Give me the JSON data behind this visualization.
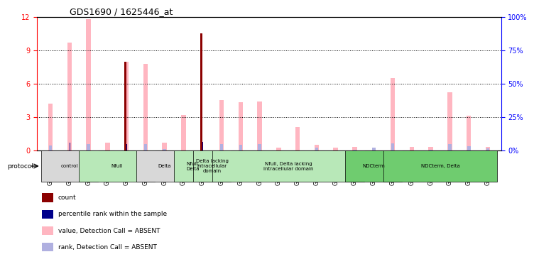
{
  "title": "GDS1690 / 1625446_at",
  "samples": [
    "GSM53393",
    "GSM53396",
    "GSM53403",
    "GSM53397",
    "GSM53399",
    "GSM53408",
    "GSM53390",
    "GSM53401",
    "GSM53406",
    "GSM53402",
    "GSM53388",
    "GSM53398",
    "GSM53392",
    "GSM53400",
    "GSM53405",
    "GSM53409",
    "GSM53410",
    "GSM53411",
    "GSM53395",
    "GSM53404",
    "GSM53389",
    "GSM53391",
    "GSM53394",
    "GSM53407"
  ],
  "count": [
    0,
    0,
    0,
    0,
    8.0,
    0,
    0,
    0,
    10.5,
    0,
    0,
    0,
    0,
    0,
    0,
    0,
    0,
    0,
    0,
    0,
    0,
    0,
    0,
    0
  ],
  "percentile_rank": [
    0,
    5.8,
    0,
    0,
    4.8,
    0,
    0,
    0,
    6.0,
    0,
    0,
    0,
    0,
    0,
    0,
    0,
    0,
    0,
    0,
    0,
    0,
    0,
    0,
    0
  ],
  "value_absent": [
    4.2,
    9.7,
    11.8,
    0.7,
    8.0,
    7.8,
    0.7,
    3.2,
    0,
    4.5,
    4.3,
    4.4,
    0.2,
    2.1,
    0.5,
    0.2,
    0.3,
    0,
    6.5,
    0.3,
    0.3,
    5.2,
    3.1,
    0.3
  ],
  "rank_absent": [
    3.3,
    0,
    4.5,
    0,
    0,
    4.8,
    0.7,
    0,
    0,
    4.5,
    4.2,
    4.3,
    0,
    0,
    2.0,
    0,
    0.3,
    1.7,
    5.0,
    0,
    0.3,
    4.5,
    3.2,
    1.5
  ],
  "protocols": [
    {
      "label": "control",
      "start": 0,
      "end": 2,
      "color": "#d8d8d8"
    },
    {
      "label": "Nfull",
      "start": 2,
      "end": 5,
      "color": "#b8e8b8"
    },
    {
      "label": "Delta",
      "start": 5,
      "end": 7,
      "color": "#d8d8d8"
    },
    {
      "label": "Nfull,\nDelta",
      "start": 7,
      "end": 8,
      "color": "#b8e8b8"
    },
    {
      "label": "Delta lacking\nintracellular\ndomain",
      "start": 8,
      "end": 9,
      "color": "#b8e8b8"
    },
    {
      "label": "Nfull, Delta lacking\nintracellular domain",
      "start": 9,
      "end": 16,
      "color": "#b8e8b8"
    },
    {
      "label": "NDCterm",
      "start": 16,
      "end": 18,
      "color": "#6fcc6f"
    },
    {
      "label": "NDCterm, Delta",
      "start": 18,
      "end": 23,
      "color": "#6fcc6f"
    }
  ],
  "ylim_left": [
    0,
    12
  ],
  "ylim_right": [
    0,
    100
  ],
  "yticks_left": [
    0,
    3,
    6,
    9,
    12
  ],
  "yticks_right": [
    0,
    25,
    50,
    75,
    100
  ],
  "bar_width": 0.35,
  "color_count": "#8B0000",
  "color_rank": "#00008B",
  "color_value_absent": "#FFB6C1",
  "color_rank_absent": "#b0b0e0"
}
